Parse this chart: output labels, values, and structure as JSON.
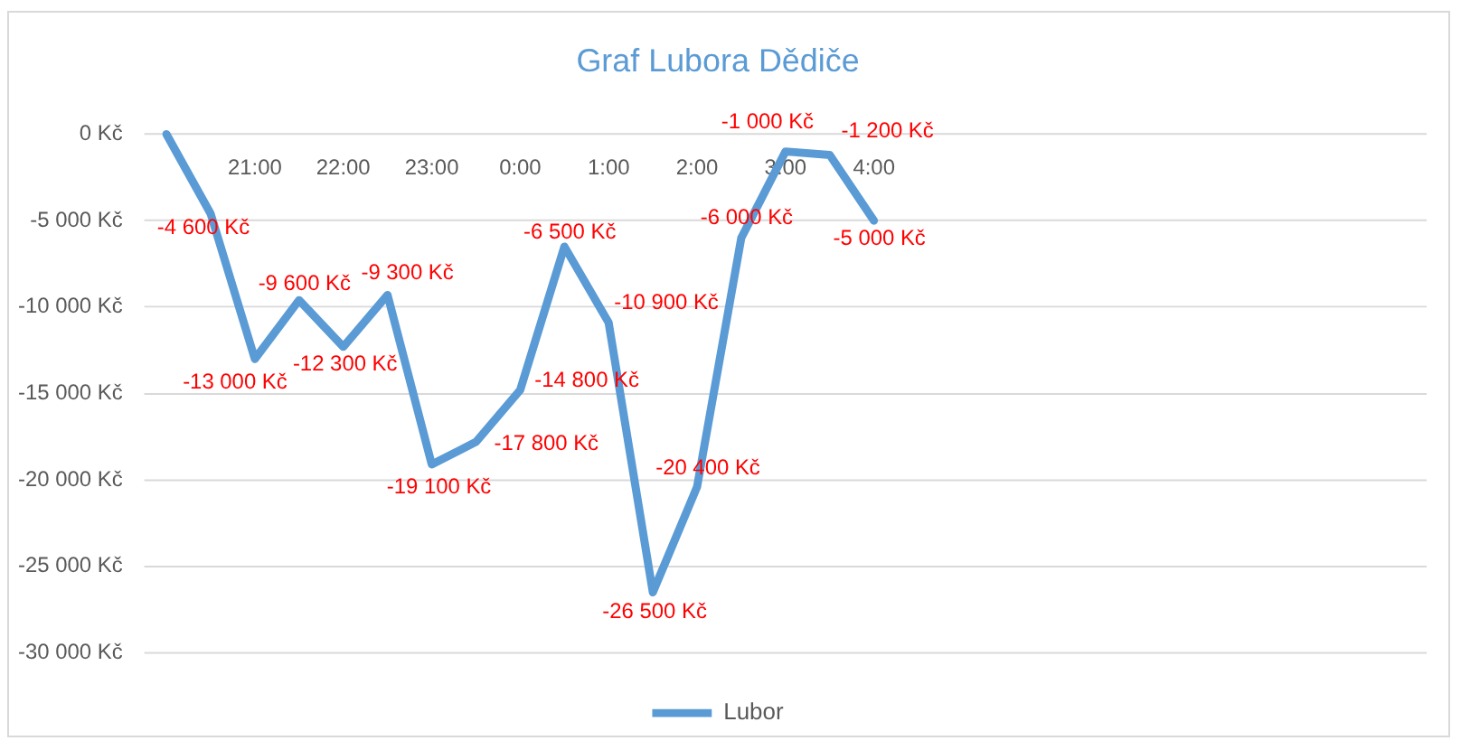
{
  "chart_data": {
    "type": "line",
    "title": "Graf Lubora Dědiče",
    "categories": [
      null,
      null,
      "21:00",
      null,
      "22:00",
      null,
      "23:00",
      null,
      "0:00",
      null,
      "1:00",
      null,
      "2:00",
      null,
      "3:00",
      null,
      "4:00",
      null,
      null,
      null,
      null,
      null,
      null,
      null,
      null,
      null,
      null,
      null,
      null
    ],
    "ylim": [
      -30000,
      0
    ],
    "yticks": [
      {
        "value": 0,
        "label": "0 Kč"
      },
      {
        "value": -5000,
        "label": "-5 000 Kč"
      },
      {
        "value": -10000,
        "label": "-10 000 Kč"
      },
      {
        "value": -15000,
        "label": "-15 000 Kč"
      },
      {
        "value": -20000,
        "label": "-20 000 Kč"
      },
      {
        "value": -25000,
        "label": "-25 000 Kč"
      },
      {
        "value": -30000,
        "label": "-30 000 Kč"
      }
    ],
    "series": [
      {
        "name": "Lubor",
        "color": "#5b9bd5",
        "values": [
          0,
          -4600,
          -13000,
          -9600,
          -12300,
          -9300,
          -19100,
          -17800,
          -14800,
          -6500,
          -10900,
          -26500,
          -20400,
          -6000,
          -1000,
          -1200,
          -5000,
          null,
          null,
          null,
          null,
          null,
          null,
          null,
          null,
          null,
          null,
          null,
          null
        ],
        "value_labels": [
          null,
          "-4 600 Kč",
          "-13 000 Kč",
          "-9 600 Kč",
          "-12 300 Kč",
          "-9 300 Kč",
          "-19 100 Kč",
          "-17 800 Kč",
          "-14 800 Kč",
          "-6 500 Kč",
          "-10 900 Kč",
          "-26 500 Kč",
          "-20 400 Kč",
          "-6 000 Kč",
          "-1 000 Kč",
          "-1 200 Kč",
          "-5 000 Kč",
          null,
          null,
          null,
          null,
          null,
          null,
          null,
          null,
          null,
          null,
          null,
          null
        ]
      }
    ],
    "grid": "y",
    "legend": "bottom"
  }
}
